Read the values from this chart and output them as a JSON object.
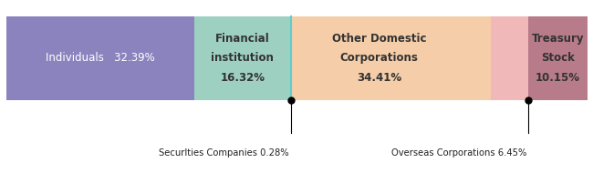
{
  "segments": [
    {
      "label": "Individuals",
      "pct": "32.39%",
      "value": 32.39,
      "color": "#8B83BE",
      "text_color": "#ffffff",
      "inside": true
    },
    {
      "label": "Financial\ninstitution\n16.32%",
      "value": 16.32,
      "color": "#9ED0C2",
      "text_color": "#333333",
      "inside": true
    },
    {
      "label": "",
      "value": 0.28,
      "color": "#9ED0C2",
      "text_color": "#333333",
      "inside": false
    },
    {
      "label": "Other Domestic\nCorporations\n34.41%",
      "value": 34.41,
      "color": "#F5CDA8",
      "text_color": "#333333",
      "inside": true
    },
    {
      "label": "",
      "value": 6.45,
      "color": "#F0B8B8",
      "text_color": "#333333",
      "inside": false
    },
    {
      "label": "Treasury\nStock\n10.15%",
      "value": 10.15,
      "color": "#B87B8A",
      "text_color": "#333333",
      "inside": true
    }
  ],
  "divider_color": "#5BCFCF",
  "bg_color": "#ffffff",
  "ann_securities_label": "Securlties Companies 0.28%",
  "ann_overseas_label": "Overseas Corporations 6.45%"
}
